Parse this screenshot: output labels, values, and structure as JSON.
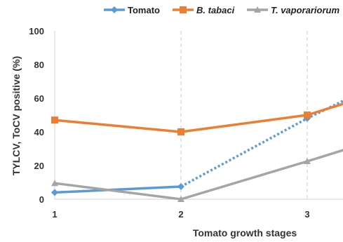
{
  "chart_data": {
    "type": "line",
    "xlabel": "Tomato growth stages",
    "ylabel": "TYLCV, ToCV positive (%)",
    "x": [
      1,
      2,
      3,
      3.3
    ],
    "x_tick_labels": [
      "1",
      "2",
      "3"
    ],
    "ylim": [
      0,
      100
    ],
    "y_ticks": [
      0,
      20,
      40,
      60,
      80,
      100
    ],
    "grid": "vertical dashed at x ticks",
    "legend_position": "top",
    "series": [
      {
        "name": "Tomato",
        "color": "#5b9bd5",
        "marker": "diamond",
        "points": [
          [
            1,
            4
          ],
          [
            2,
            7.5
          ],
          [
            3,
            48
          ],
          [
            3.3,
            59
          ]
        ],
        "dashed_from_index": 1
      },
      {
        "name": "B. tabaci",
        "color": "#ed7d31",
        "marker": "square",
        "points": [
          [
            1,
            47
          ],
          [
            2,
            40
          ],
          [
            3,
            50
          ],
          [
            3.3,
            57
          ]
        ]
      },
      {
        "name": "T. vaporariorum",
        "color": "#a5a5a5",
        "marker": "triangle",
        "points": [
          [
            1,
            9.5
          ],
          [
            2,
            0
          ],
          [
            3,
            22.5
          ],
          [
            3.3,
            29.5
          ]
        ]
      }
    ]
  }
}
